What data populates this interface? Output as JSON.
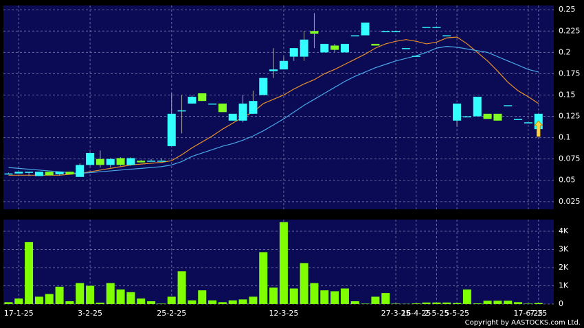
{
  "chart_data": [
    {
      "type": "candlestick",
      "ylim": [
        0.016,
        0.255
      ],
      "yticks": [
        0.025,
        0.05,
        0.075,
        0.1,
        0.125,
        0.15,
        0.175,
        0.2,
        0.225,
        0.25
      ],
      "grid": true,
      "up_color": "#33ffff",
      "down_color": "#80ff20",
      "open": [
        0.058,
        0.058,
        0.06,
        0.055,
        0.06,
        0.057,
        0.06,
        0.054,
        0.068,
        0.075,
        0.068,
        0.076,
        0.068,
        0.073,
        0.073,
        0.073,
        0.09,
        0.132,
        0.14,
        0.152,
        0.14,
        0.14,
        0.12,
        0.12,
        0.128,
        0.15,
        0.178,
        0.18,
        0.195,
        0.195,
        0.225,
        0.2,
        0.208,
        0.2,
        0.22,
        0.22,
        0.21,
        0.225,
        0.225,
        0.205,
        0.196,
        0.23,
        0.23,
        0.22,
        0.12,
        0.125,
        0.125,
        0.128,
        0.128,
        0.138,
        0.122,
        0.118,
        0.11
      ],
      "high": [
        0.059,
        0.06,
        0.06,
        0.06,
        0.06,
        0.06,
        0.06,
        0.07,
        0.083,
        0.085,
        0.076,
        0.077,
        0.077,
        0.074,
        0.075,
        0.076,
        0.152,
        0.15,
        0.15,
        0.152,
        0.14,
        0.14,
        0.128,
        0.15,
        0.155,
        0.17,
        0.205,
        0.195,
        0.205,
        0.225,
        0.246,
        0.21,
        0.21,
        0.21,
        0.22,
        0.235,
        0.21,
        0.225,
        0.225,
        0.205,
        0.196,
        0.23,
        0.23,
        0.22,
        0.14,
        0.125,
        0.148,
        0.128,
        0.128,
        0.138,
        0.122,
        0.118,
        0.128
      ],
      "low": [
        0.057,
        0.058,
        0.055,
        0.055,
        0.056,
        0.056,
        0.057,
        0.054,
        0.067,
        0.065,
        0.065,
        0.067,
        0.067,
        0.071,
        0.073,
        0.073,
        0.09,
        0.105,
        0.14,
        0.143,
        0.14,
        0.13,
        0.12,
        0.118,
        0.128,
        0.15,
        0.17,
        0.18,
        0.19,
        0.19,
        0.205,
        0.2,
        0.2,
        0.2,
        0.22,
        0.22,
        0.208,
        0.225,
        0.225,
        0.205,
        0.196,
        0.23,
        0.23,
        0.22,
        0.113,
        0.125,
        0.125,
        0.122,
        0.12,
        0.138,
        0.122,
        0.118,
        0.11
      ],
      "close": [
        0.058,
        0.06,
        0.06,
        0.06,
        0.056,
        0.06,
        0.057,
        0.068,
        0.082,
        0.068,
        0.075,
        0.068,
        0.076,
        0.071,
        0.073,
        0.073,
        0.128,
        0.132,
        0.148,
        0.143,
        0.14,
        0.13,
        0.128,
        0.14,
        0.143,
        0.17,
        0.18,
        0.19,
        0.205,
        0.215,
        0.222,
        0.21,
        0.203,
        0.21,
        0.22,
        0.235,
        0.208,
        0.225,
        0.225,
        0.205,
        0.196,
        0.23,
        0.23,
        0.22,
        0.14,
        0.125,
        0.148,
        0.122,
        0.12,
        0.138,
        0.122,
        0.118,
        0.128
      ],
      "lines": [
        {
          "color": "#e8902a",
          "values": [
            0.056,
            0.056,
            0.056,
            0.056,
            0.056,
            0.056,
            0.057,
            0.058,
            0.06,
            0.062,
            0.064,
            0.066,
            0.068,
            0.069,
            0.07,
            0.071,
            0.073,
            0.08,
            0.088,
            0.095,
            0.102,
            0.11,
            0.117,
            0.124,
            0.13,
            0.14,
            0.145,
            0.15,
            0.157,
            0.163,
            0.168,
            0.175,
            0.18,
            0.186,
            0.192,
            0.198,
            0.205,
            0.21,
            0.213,
            0.215,
            0.213,
            0.21,
            0.212,
            0.217,
            0.218,
            0.21,
            0.2,
            0.19,
            0.178,
            0.165,
            0.155,
            0.148,
            0.14
          ]
        },
        {
          "color": "#4aa8e8",
          "values": [
            0.065,
            0.064,
            0.063,
            0.062,
            0.061,
            0.06,
            0.059,
            0.058,
            0.059,
            0.06,
            0.061,
            0.062,
            0.063,
            0.064,
            0.065,
            0.066,
            0.068,
            0.072,
            0.078,
            0.082,
            0.086,
            0.09,
            0.093,
            0.097,
            0.102,
            0.108,
            0.115,
            0.122,
            0.13,
            0.138,
            0.145,
            0.152,
            0.159,
            0.166,
            0.172,
            0.177,
            0.182,
            0.186,
            0.19,
            0.193,
            0.196,
            0.2,
            0.205,
            0.207,
            0.206,
            0.204,
            0.202,
            0.2,
            0.195,
            0.19,
            0.185,
            0.18,
            0.177
          ]
        }
      ]
    },
    {
      "type": "bar",
      "color": "#80ff00",
      "categories": [
        null,
        "17-1-25",
        null,
        null,
        null,
        null,
        null,
        null,
        "3-2-25",
        null,
        null,
        null,
        null,
        null,
        null,
        null,
        "25-2-25",
        null,
        null,
        null,
        null,
        null,
        null,
        null,
        null,
        null,
        null,
        "12-3-25",
        null,
        null,
        null,
        null,
        null,
        null,
        null,
        null,
        null,
        null,
        "27-3-25",
        null,
        "16-4-25",
        null,
        "2-5-25",
        null,
        "5-5-25",
        null,
        null,
        null,
        null,
        null,
        null,
        "17-6-25",
        "7-25"
      ],
      "values": [
        100,
        300,
        3400,
        400,
        550,
        950,
        150,
        1150,
        1000,
        70,
        1150,
        800,
        650,
        300,
        150,
        20,
        400,
        1800,
        200,
        750,
        200,
        100,
        200,
        250,
        400,
        2850,
        900,
        4500,
        850,
        2250,
        1150,
        750,
        700,
        850,
        150,
        20,
        400,
        600,
        20,
        10,
        30,
        80,
        80,
        80,
        50,
        800,
        30,
        180,
        180,
        180,
        100,
        20,
        50
      ],
      "ylim": [
        0,
        4640
      ],
      "yticks": [
        {
          "value": 0,
          "label": "0"
        },
        {
          "value": 1000,
          "label": "1K"
        },
        {
          "value": 2000,
          "label": "2K"
        },
        {
          "value": 3000,
          "label": "3K"
        },
        {
          "value": 4000,
          "label": "4K"
        }
      ],
      "grid": true,
      "footer": "Copyright by AASTOCKS.com Ltd."
    }
  ]
}
